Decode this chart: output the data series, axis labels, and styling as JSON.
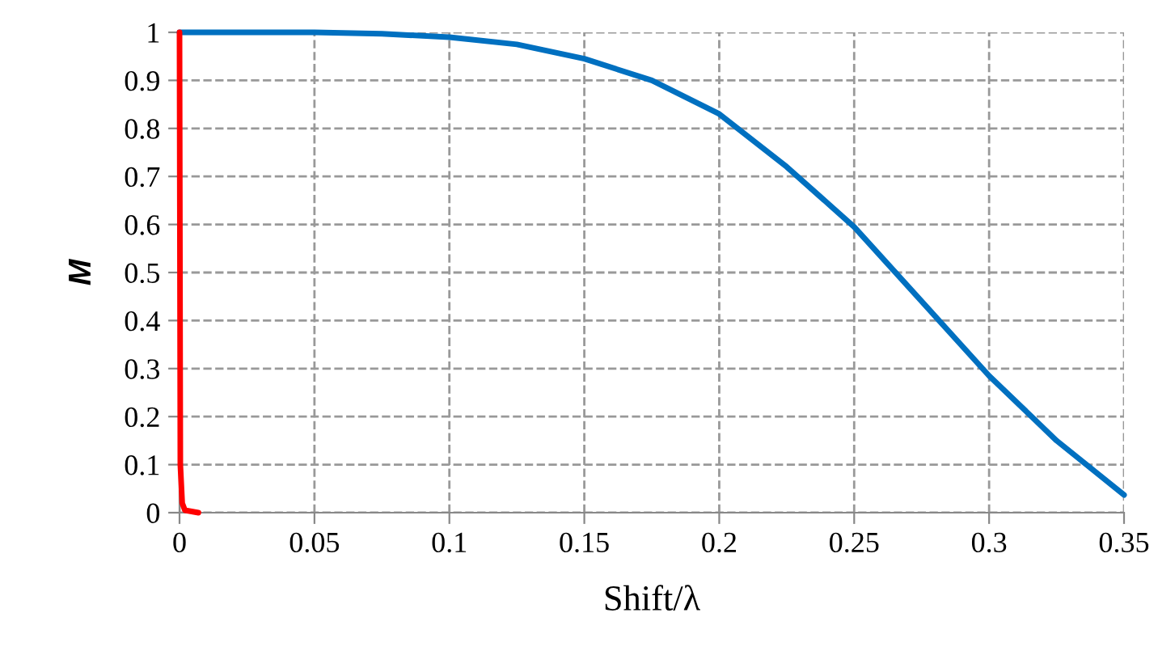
{
  "chart_data": {
    "type": "line",
    "xlabel": "Shift/λ",
    "ylabel": "M",
    "xlim": [
      0,
      0.35
    ],
    "xticks": [
      0,
      0.05,
      0.1,
      0.15,
      0.2,
      0.25,
      0.3,
      0.35
    ],
    "ylim": [
      0,
      1
    ],
    "yticks": [
      0,
      0.1,
      0.2,
      0.3,
      0.4,
      0.5,
      0.6,
      0.7,
      0.8,
      0.9,
      1
    ],
    "grid": true,
    "line_style": "solid",
    "marker": "none",
    "series": [
      {
        "color": "#0070c0",
        "x": [
          0,
          0.025,
          0.05,
          0.075,
          0.1,
          0.125,
          0.15,
          0.175,
          0.2,
          0.225,
          0.25,
          0.275,
          0.3,
          0.325,
          0.35
        ],
        "values": [
          1,
          1,
          1,
          0.997,
          0.99,
          0.975,
          0.945,
          0.9,
          0.83,
          0.72,
          0.595,
          0.44,
          0.285,
          0.15,
          0.037
        ]
      },
      {
        "color": "#ff0000",
        "x": [
          0,
          0.0003,
          0.001,
          0.002,
          0.007
        ],
        "values": [
          1,
          0.1,
          0.02,
          0.005,
          0
        ]
      }
    ]
  }
}
